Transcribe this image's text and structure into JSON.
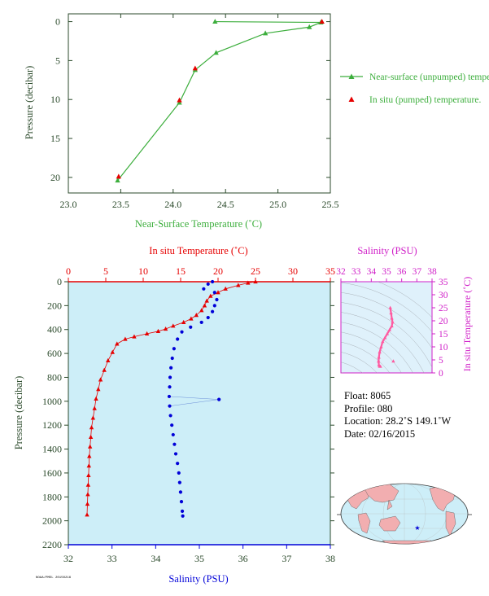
{
  "colors": {
    "green": "#3cae3c",
    "red": "#e60000",
    "blue": "#0000d8",
    "magenta": "#d020c8",
    "axis_dark": "#2b4a2b",
    "panel_bg": "#cdeef8",
    "inset_bg": "#dff1fb",
    "pink": "#ff5aa0"
  },
  "chart_data": [
    {
      "type": "line",
      "xlabel": "Near-Surface Temperature (˚C)",
      "ylabel": "Pressure (decibar)",
      "xlim": [
        23.0,
        25.5
      ],
      "ylim": [
        22,
        -1
      ],
      "x_ticks": [
        "23.0",
        "23.5",
        "24.0",
        "24.5",
        "25.0",
        "25.5"
      ],
      "y_ticks": [
        "0",
        "5",
        "10",
        "15",
        "20"
      ],
      "legend_position": "right",
      "series": [
        {
          "name": "Near-surface (unpumped) temperature.",
          "marker": "triangle",
          "points": [
            [
              24.4,
              0.0
            ],
            [
              25.41,
              0.1
            ],
            [
              25.3,
              0.7
            ],
            [
              24.88,
              1.5
            ],
            [
              24.41,
              4.0
            ],
            [
              24.21,
              6.2
            ],
            [
              24.06,
              10.4
            ],
            [
              23.47,
              20.4
            ]
          ]
        },
        {
          "name": "In situ (pumped) temperature.",
          "marker": "triangle",
          "points": [
            [
              25.42,
              0.0
            ],
            [
              24.21,
              6.0
            ],
            [
              24.06,
              10.1
            ],
            [
              23.48,
              19.9
            ]
          ]
        }
      ]
    },
    {
      "type": "line",
      "title_top": "In situ Temperature (˚C)",
      "xlabel": "Salinity (PSU)",
      "ylabel": "Pressure (decibar)",
      "temperature_axis": [
        0,
        35
      ],
      "temperature_ticks": [
        "0",
        "5",
        "10",
        "15",
        "20",
        "25",
        "30",
        "35"
      ],
      "salinity_axis": [
        32,
        38
      ],
      "salinity_ticks": [
        "32",
        "33",
        "34",
        "35",
        "36",
        "37",
        "38"
      ],
      "pressure_axis": [
        2200,
        0
      ],
      "pressure_ticks": [
        "0",
        "200",
        "400",
        "600",
        "800",
        "1000",
        "1200",
        "1400",
        "1600",
        "1800",
        "2000",
        "2200"
      ],
      "series": [
        {
          "name": "In situ Temperature",
          "axis": "temperature",
          "marker": "triangle",
          "points": [
            [
              25,
              0
            ],
            [
              24,
              10
            ],
            [
              22.7,
              30
            ],
            [
              21,
              60
            ],
            [
              20,
              90
            ],
            [
              19,
              120
            ],
            [
              18.5,
              160
            ],
            [
              18.2,
              200
            ],
            [
              17.8,
              240
            ],
            [
              17.1,
              280
            ],
            [
              16.4,
              310
            ],
            [
              15.4,
              340
            ],
            [
              14,
              370
            ],
            [
              13,
              395
            ],
            [
              12,
              415
            ],
            [
              10.5,
              435
            ],
            [
              8.8,
              460
            ],
            [
              7.6,
              480
            ],
            [
              6.5,
              520
            ],
            [
              5.9,
              590
            ],
            [
              5.3,
              660
            ],
            [
              4.8,
              740
            ],
            [
              4.3,
              820
            ],
            [
              4.0,
              900
            ],
            [
              3.7,
              980
            ],
            [
              3.5,
              1060
            ],
            [
              3.3,
              1140
            ],
            [
              3.1,
              1220
            ],
            [
              3.0,
              1300
            ],
            [
              2.9,
              1380
            ],
            [
              2.8,
              1460
            ],
            [
              2.75,
              1540
            ],
            [
              2.7,
              1620
            ],
            [
              2.65,
              1700
            ],
            [
              2.6,
              1780
            ],
            [
              2.55,
              1860
            ],
            [
              2.5,
              1950
            ]
          ]
        },
        {
          "name": "Salinity",
          "axis": "salinity",
          "marker": "dot",
          "points": [
            [
              35.3,
              0
            ],
            [
              35.2,
              20
            ],
            [
              35.1,
              60
            ],
            [
              35.35,
              90
            ],
            [
              35.4,
              150
            ],
            [
              35.35,
              200
            ],
            [
              35.3,
              250
            ],
            [
              35.2,
              300
            ],
            [
              35.05,
              340
            ],
            [
              34.8,
              380
            ],
            [
              34.6,
              420
            ],
            [
              34.5,
              480
            ],
            [
              34.42,
              560
            ],
            [
              34.38,
              640
            ],
            [
              34.35,
              720
            ],
            [
              34.33,
              800
            ],
            [
              34.32,
              880
            ],
            [
              34.31,
              960
            ],
            [
              34.32,
              1040
            ],
            [
              34.34,
              1120
            ],
            [
              34.37,
              1200
            ],
            [
              34.4,
              1280
            ],
            [
              34.43,
              1360
            ],
            [
              34.46,
              1440
            ],
            [
              34.5,
              1520
            ],
            [
              34.53,
              1600
            ],
            [
              34.55,
              1680
            ],
            [
              34.57,
              1760
            ],
            [
              34.59,
              1840
            ],
            [
              34.61,
              1920
            ],
            [
              34.62,
              1960
            ]
          ]
        },
        {
          "name": "Salinity outlier",
          "axis": "salinity",
          "marker": "dot",
          "points": [
            [
              35.45,
              985
            ]
          ]
        }
      ]
    },
    {
      "type": "scatter",
      "xlabel": "Salinity (PSU)",
      "ylabel": "In situ Temperature (˚C)",
      "xlim": [
        32,
        38
      ],
      "ylim": [
        0,
        35
      ],
      "x_ticks": [
        "32",
        "33",
        "34",
        "35",
        "36",
        "37",
        "38"
      ],
      "y_ticks": [
        "0",
        "5",
        "10",
        "15",
        "20",
        "25",
        "30",
        "35"
      ],
      "points": [
        [
          35.25,
          25
        ],
        [
          35.3,
          23
        ],
        [
          35.35,
          21
        ],
        [
          35.4,
          19.5
        ],
        [
          35.35,
          18
        ],
        [
          35.2,
          16.5
        ],
        [
          35.05,
          15
        ],
        [
          34.9,
          13.5
        ],
        [
          34.75,
          12
        ],
        [
          34.65,
          10
        ],
        [
          34.55,
          8
        ],
        [
          34.5,
          6
        ],
        [
          34.48,
          4.5
        ],
        [
          34.5,
          3
        ],
        [
          34.55,
          2.5
        ],
        [
          34.6,
          2.5
        ],
        [
          35.45,
          4.5
        ]
      ]
    }
  ],
  "info": {
    "float": "Float:  8065",
    "profile": "Profile:  080",
    "location": "Location:  28.2˚S   149.1˚W",
    "date": "Date:  02/16/2015"
  },
  "map": {
    "marker_symbol": "★"
  },
  "stamp": "NOAA/PMEL 20150216"
}
